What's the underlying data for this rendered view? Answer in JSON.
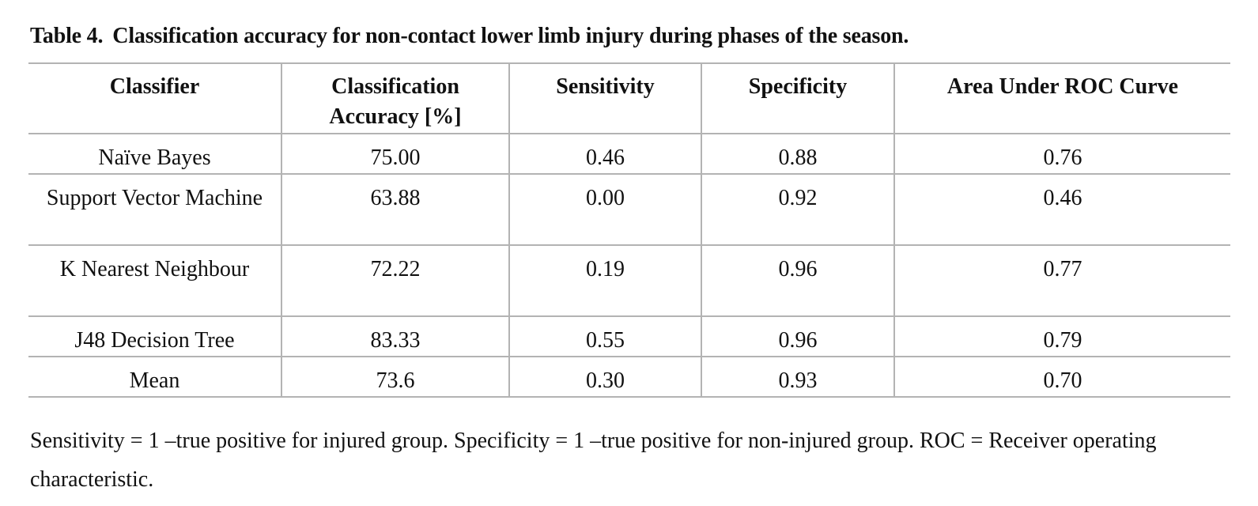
{
  "caption": {
    "label": "Table 4.",
    "title": "Classification accuracy for non-contact lower limb injury during phases of the season."
  },
  "table": {
    "headers": [
      "Classifier",
      "Classification Accuracy [%]",
      "Sensitivity",
      "Specificity",
      "Area Under ROC Curve"
    ],
    "rows": [
      [
        "Naïve Bayes",
        "75.00",
        "0.46",
        "0.88",
        "0.76"
      ],
      [
        "Support Vector Machine",
        "63.88",
        "0.00",
        "0.92",
        "0.46"
      ],
      [
        "K Nearest Neighbour",
        "72.22",
        "0.19",
        "0.96",
        "0.77"
      ],
      [
        "J48 Decision Tree",
        "83.33",
        "0.55",
        "0.96",
        "0.79"
      ],
      [
        "Mean",
        "73.6",
        "0.30",
        "0.93",
        "0.70"
      ]
    ]
  },
  "footnote": "Sensitivity = 1 –true positive for injured group. Specificity = 1 –true positive for non-injured group. ROC = Receiver operating characteristic."
}
